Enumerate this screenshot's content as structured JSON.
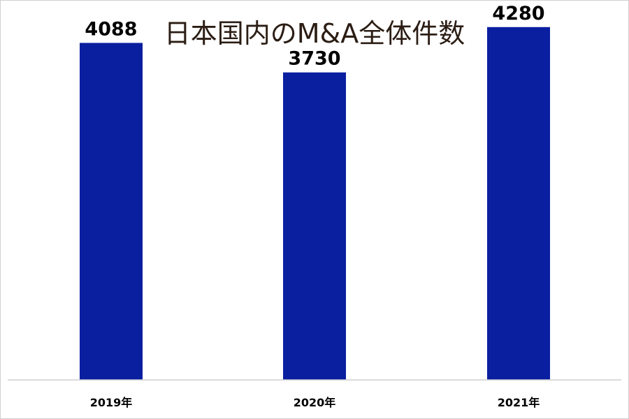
{
  "chart_data": {
    "type": "bar",
    "title": "日本国内のM&A全体件数",
    "categories": [
      "2019年",
      "2020年",
      "2021年"
    ],
    "values": [
      4088,
      3730,
      4280
    ],
    "data_labels": [
      "4088",
      "3730",
      "4280"
    ],
    "ylim": [
      0,
      4600
    ],
    "grid": false,
    "legend": "none",
    "bar_color": "#0a1fa0",
    "axis_color": "#d0d0d0"
  }
}
